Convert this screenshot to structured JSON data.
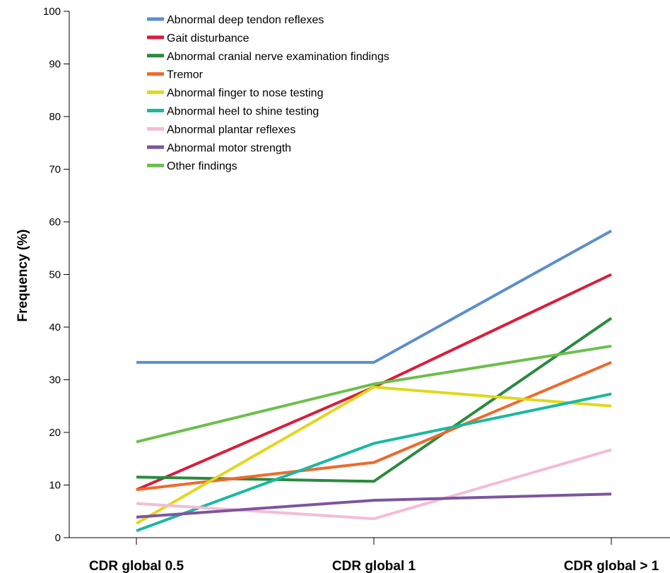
{
  "chart_data": {
    "type": "line",
    "title": "",
    "xlabel": "",
    "ylabel": "Frequency (%)",
    "categories": [
      "CDR global 0.5",
      "CDR global 1",
      "CDR global > 1"
    ],
    "yticks": [
      0,
      10,
      20,
      30,
      40,
      50,
      60,
      70,
      80,
      90,
      100
    ],
    "ylim": [
      0,
      100
    ],
    "grid": false,
    "legend_position": "top-left",
    "series": [
      {
        "name": "Abnormal deep tendon reflexes",
        "color": "#5b8fcc",
        "values": [
          33.3,
          33.3,
          58.3
        ]
      },
      {
        "name": "Gait disturbance",
        "color": "#d81e3c",
        "values": [
          9.1,
          28.6,
          50.0
        ]
      },
      {
        "name": "Abnormal cranial nerve examination findings",
        "color": "#2a8a3e",
        "values": [
          11.5,
          10.7,
          41.7
        ]
      },
      {
        "name": "Tremor",
        "color": "#ee6a2c",
        "values": [
          9.1,
          14.3,
          33.3
        ]
      },
      {
        "name": "Abnormal finger to nose testing",
        "color": "#e0d81c",
        "values": [
          2.7,
          28.6,
          25.0
        ]
      },
      {
        "name": "Abnormal heel to shine testing",
        "color": "#1bb8a0",
        "values": [
          1.3,
          17.9,
          27.3
        ]
      },
      {
        "name": "Abnormal plantar reflexes",
        "color": "#f4bcd6",
        "values": [
          6.5,
          3.6,
          16.7
        ]
      },
      {
        "name": "Abnormal motor strength",
        "color": "#7d55a0",
        "values": [
          3.9,
          7.1,
          8.3
        ]
      },
      {
        "name": "Other findings",
        "color": "#6cbf4c",
        "values": [
          18.2,
          29.2,
          36.4
        ]
      }
    ]
  }
}
